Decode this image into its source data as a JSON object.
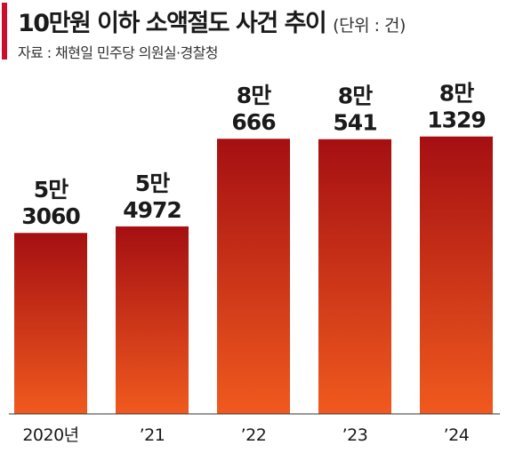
{
  "title": "10만원 이하 소액절도 사건 추이",
  "unit": "(단위 : 건)",
  "source": "자료 : 채현일 민주당 의원실·경찰청",
  "colors": {
    "accent": "#c8102e",
    "bar_top": "#a50f12",
    "bar_bottom": "#f05a1e"
  },
  "chart_data": {
    "type": "bar",
    "categories": [
      "2020년",
      "’21",
      "’22",
      "’23",
      "’24"
    ],
    "values": [
      53060,
      54972,
      80666,
      80541,
      81329
    ],
    "value_labels": [
      [
        "5만",
        "3060"
      ],
      [
        "5만",
        "4972"
      ],
      [
        "8만",
        "666"
      ],
      [
        "8만",
        "541"
      ],
      [
        "8만",
        "1329"
      ]
    ],
    "title": "10만원 이하 소액절도 사건 추이",
    "ylim": [
      0,
      100000
    ],
    "grid": false,
    "legend": "none"
  }
}
